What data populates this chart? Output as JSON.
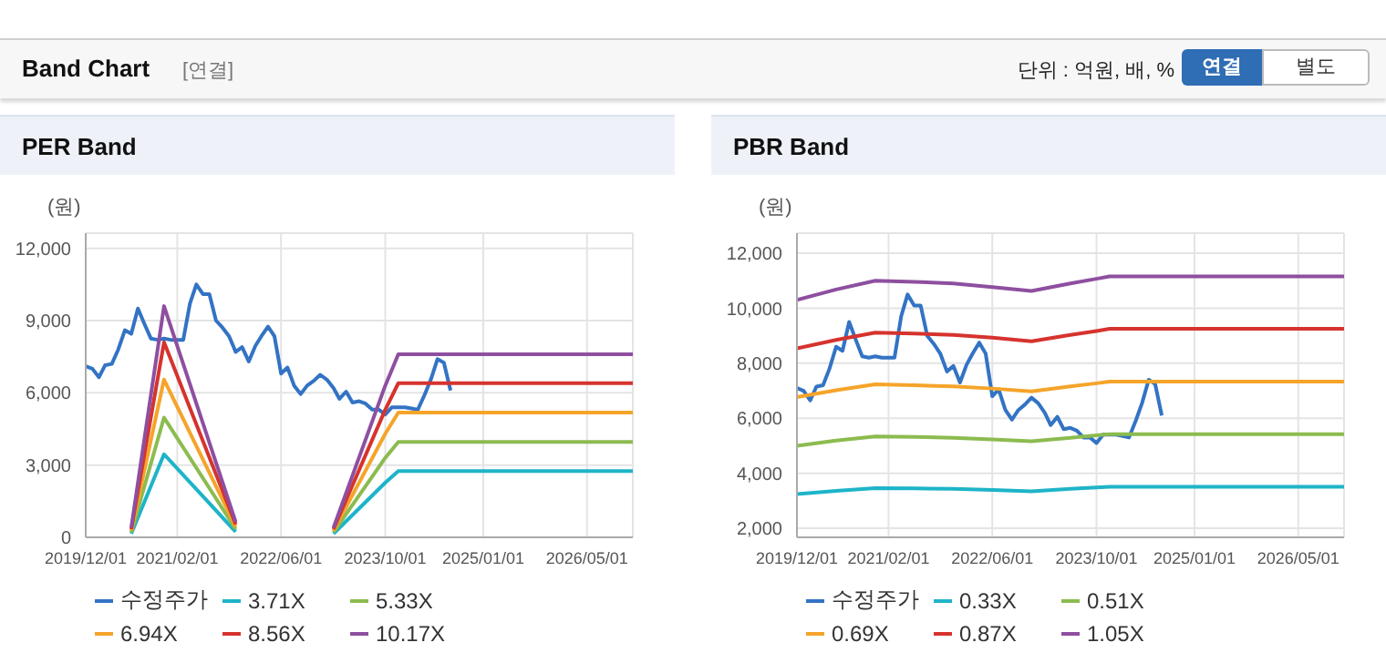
{
  "chart_data": [
    {
      "type": "other",
      "title": "Band Chart",
      "annotations": [
        "[연결]",
        "단위 : 억원, 배, %",
        "연결",
        "별도"
      ]
    },
    {
      "type": "line",
      "title": "PER Band",
      "ylabel": "(원)",
      "xlim": [
        "2019-12-01",
        "2026-12-01"
      ],
      "xticks": [
        {
          "value": "2019-12-01",
          "label": "2019/12/01"
        },
        {
          "value": "2021-02-01",
          "label": "2021/02/01"
        },
        {
          "value": "2022-06-01",
          "label": "2022/06/01"
        },
        {
          "value": "2023-10-01",
          "label": "2023/10/01"
        },
        {
          "value": "2025-01-01",
          "label": "2025/01/01"
        },
        {
          "value": "2026-05-01",
          "label": "2026/05/01"
        }
      ],
      "ylim": [
        0,
        12630
      ],
      "yticks": [
        {
          "value": 0,
          "label": "0"
        },
        {
          "value": 3000,
          "label": "3,000"
        },
        {
          "value": 6000,
          "label": "6,000"
        },
        {
          "value": 9000,
          "label": "9,000"
        },
        {
          "value": 12000,
          "label": "12,000"
        }
      ],
      "grid": true,
      "legend": "bottom",
      "marker": "none",
      "line_style": "solid",
      "series": [
        {
          "name": "수정주가",
          "color": "#3373c4",
          "x": [
            "2019-12",
            "2020-01",
            "2020-02",
            "2020-03",
            "2020-04",
            "2020-05",
            "2020-06",
            "2020-07",
            "2020-08",
            "2020-09",
            "2020-10",
            "2020-11",
            "2020-12",
            "2021-01",
            "2021-02",
            "2021-03",
            "2021-04",
            "2021-05",
            "2021-06",
            "2021-07",
            "2021-08",
            "2021-09",
            "2021-10",
            "2021-11",
            "2021-12",
            "2022-01",
            "2022-02",
            "2022-03",
            "2022-04",
            "2022-05",
            "2022-06",
            "2022-07",
            "2022-08",
            "2022-09",
            "2022-10",
            "2022-11",
            "2022-12",
            "2023-01",
            "2023-02",
            "2023-03",
            "2023-04",
            "2023-05",
            "2023-06",
            "2023-07",
            "2023-08",
            "2023-09",
            "2023-10",
            "2023-11",
            "2023-12",
            "2024-01",
            "2024-02",
            "2024-03",
            "2024-04",
            "2024-05",
            "2024-06",
            "2024-07",
            "2024-08"
          ],
          "values": [
            7100,
            7000,
            6650,
            7150,
            7200,
            7800,
            8600,
            8450,
            9500,
            8850,
            8250,
            8200,
            8250,
            8200,
            8200,
            8200,
            9700,
            10500,
            10100,
            10100,
            9000,
            8700,
            8350,
            7700,
            7900,
            7300,
            7950,
            8350,
            8750,
            8350,
            6800,
            7050,
            6300,
            5950,
            6300,
            6500,
            6750,
            6550,
            6200,
            5750,
            6050,
            5600,
            5650,
            5550,
            5300,
            5300,
            5100,
            5400,
            5400,
            5400,
            5350,
            5300,
            5900,
            6550,
            7400,
            7250,
            6100
          ]
        },
        {
          "name": "3.71X",
          "color": "#1eb4c8",
          "x": [
            "2020-07",
            "2020-12",
            "2021-11",
            "2022-06",
            "2023-02",
            "2023-10",
            "2023-12",
            "2026-12"
          ],
          "values": [
            150,
            3450,
            230,
            null,
            150,
            2270,
            2750,
            2750
          ]
        },
        {
          "name": "5.33X",
          "color": "#8cbb4f",
          "x": [
            "2020-07",
            "2020-12",
            "2021-11",
            "2022-06",
            "2023-02",
            "2023-10",
            "2023-12",
            "2026-12"
          ],
          "values": [
            210,
            4970,
            340,
            null,
            210,
            3300,
            3960,
            3960
          ]
        },
        {
          "name": "6.94X",
          "color": "#f5a42a",
          "x": [
            "2020-07",
            "2020-12",
            "2021-11",
            "2022-06",
            "2023-02",
            "2023-10",
            "2023-12",
            "2026-12"
          ],
          "values": [
            280,
            6550,
            440,
            null,
            280,
            4300,
            5180,
            5180
          ]
        },
        {
          "name": "8.56X",
          "color": "#d6332e",
          "x": [
            "2020-07",
            "2020-12",
            "2021-11",
            "2022-06",
            "2023-02",
            "2023-10",
            "2023-12",
            "2026-12"
          ],
          "values": [
            340,
            8100,
            540,
            null,
            340,
            5300,
            6400,
            6400
          ]
        },
        {
          "name": "10.17X",
          "color": "#8e4fa0",
          "x": [
            "2020-07",
            "2020-12",
            "2021-11",
            "2022-06",
            "2023-02",
            "2023-10",
            "2023-12",
            "2026-12"
          ],
          "values": [
            400,
            9600,
            640,
            null,
            400,
            6300,
            7600,
            7600
          ]
        }
      ]
    },
    {
      "type": "line",
      "title": "PBR Band",
      "ylabel": "(원)",
      "xlim": [
        "2019-12-01",
        "2026-12-01"
      ],
      "xticks": [
        {
          "value": "2019-12-01",
          "label": "2019/12/01"
        },
        {
          "value": "2021-02-01",
          "label": "2021/02/01"
        },
        {
          "value": "2022-06-01",
          "label": "2022/06/01"
        },
        {
          "value": "2023-10-01",
          "label": "2023/10/01"
        },
        {
          "value": "2025-01-01",
          "label": "2025/01/01"
        },
        {
          "value": "2026-05-01",
          "label": "2026/05/01"
        }
      ],
      "ylim": [
        1670,
        12730
      ],
      "yticks": [
        {
          "value": 2000,
          "label": "2,000"
        },
        {
          "value": 4000,
          "label": "4,000"
        },
        {
          "value": 6000,
          "label": "6,000"
        },
        {
          "value": 8000,
          "label": "8,000"
        },
        {
          "value": 10000,
          "label": "10,000"
        },
        {
          "value": 12000,
          "label": "12,000"
        }
      ],
      "grid": true,
      "legend": "bottom",
      "marker": "none",
      "line_style": "solid",
      "series": [
        {
          "name": "수정주가",
          "color": "#3373c4",
          "x": [
            "2019-12",
            "2020-01",
            "2020-02",
            "2020-03",
            "2020-04",
            "2020-05",
            "2020-06",
            "2020-07",
            "2020-08",
            "2020-09",
            "2020-10",
            "2020-11",
            "2020-12",
            "2021-01",
            "2021-02",
            "2021-03",
            "2021-04",
            "2021-05",
            "2021-06",
            "2021-07",
            "2021-08",
            "2021-09",
            "2021-10",
            "2021-11",
            "2021-12",
            "2022-01",
            "2022-02",
            "2022-03",
            "2022-04",
            "2022-05",
            "2022-06",
            "2022-07",
            "2022-08",
            "2022-09",
            "2022-10",
            "2022-11",
            "2022-12",
            "2023-01",
            "2023-02",
            "2023-03",
            "2023-04",
            "2023-05",
            "2023-06",
            "2023-07",
            "2023-08",
            "2023-09",
            "2023-10",
            "2023-11",
            "2023-12",
            "2024-01",
            "2024-02",
            "2024-03",
            "2024-04",
            "2024-05",
            "2024-06",
            "2024-07",
            "2024-08"
          ],
          "values": [
            7100,
            7000,
            6650,
            7150,
            7200,
            7800,
            8600,
            8450,
            9500,
            8850,
            8250,
            8200,
            8250,
            8200,
            8200,
            8200,
            9700,
            10500,
            10100,
            10100,
            9000,
            8700,
            8350,
            7700,
            7900,
            7300,
            7950,
            8350,
            8750,
            8350,
            6800,
            7050,
            6300,
            5950,
            6300,
            6500,
            6750,
            6550,
            6200,
            5750,
            6050,
            5600,
            5650,
            5550,
            5300,
            5300,
            5100,
            5400,
            5400,
            5400,
            5350,
            5300,
            5900,
            6550,
            7400,
            7250,
            6100
          ]
        },
        {
          "name": "0.33X",
          "color": "#1eb4c8",
          "x": [
            "2019-12",
            "2020-06",
            "2020-12",
            "2021-06",
            "2021-12",
            "2022-06",
            "2022-12",
            "2023-06",
            "2023-10",
            "2023-12",
            "2026-12"
          ],
          "values": [
            3240,
            3360,
            3460,
            3450,
            3430,
            3390,
            3340,
            3430,
            3480,
            3510,
            3510
          ]
        },
        {
          "name": "0.51X",
          "color": "#8cbb4f",
          "x": [
            "2019-12",
            "2020-06",
            "2020-12",
            "2021-06",
            "2021-12",
            "2022-06",
            "2022-12",
            "2023-06",
            "2023-10",
            "2023-12",
            "2026-12"
          ],
          "values": [
            5000,
            5190,
            5340,
            5320,
            5290,
            5230,
            5160,
            5290,
            5380,
            5420,
            5420
          ]
        },
        {
          "name": "0.69X",
          "color": "#f5a42a",
          "x": [
            "2019-12",
            "2020-06",
            "2020-12",
            "2021-06",
            "2021-12",
            "2022-06",
            "2022-12",
            "2023-06",
            "2023-10",
            "2023-12",
            "2026-12"
          ],
          "values": [
            6770,
            7020,
            7230,
            7200,
            7160,
            7080,
            6980,
            7160,
            7270,
            7330,
            7330
          ]
        },
        {
          "name": "0.87X",
          "color": "#d6332e",
          "x": [
            "2019-12",
            "2020-06",
            "2020-12",
            "2021-06",
            "2021-12",
            "2022-06",
            "2022-12",
            "2023-06",
            "2023-10",
            "2023-12",
            "2026-12"
          ],
          "values": [
            8540,
            8850,
            9110,
            9080,
            9030,
            8930,
            8800,
            9030,
            9170,
            9250,
            9250
          ]
        },
        {
          "name": "1.05X",
          "color": "#8e4fa0",
          "x": [
            "2019-12",
            "2020-06",
            "2020-12",
            "2021-06",
            "2021-12",
            "2022-06",
            "2022-12",
            "2023-06",
            "2023-10",
            "2023-12",
            "2026-12"
          ],
          "values": [
            10300,
            10680,
            11000,
            10960,
            10900,
            10770,
            10630,
            10900,
            11070,
            11160,
            11160
          ]
        }
      ]
    }
  ]
}
